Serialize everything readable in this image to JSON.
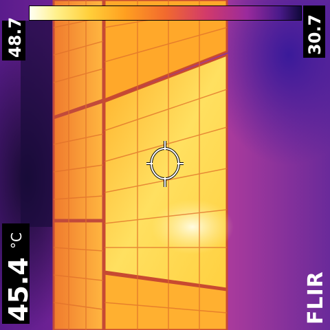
{
  "scale": {
    "max": "48.7",
    "min": "30.7"
  },
  "spot": {
    "temperature": "45.4",
    "unit": "°C"
  },
  "brand": "FLIR",
  "colors": {
    "hot": "#fff6a0",
    "warm": "#ffb030",
    "mid": "#e8602e",
    "cool": "#8a2aa0",
    "cold": "#10083a"
  }
}
